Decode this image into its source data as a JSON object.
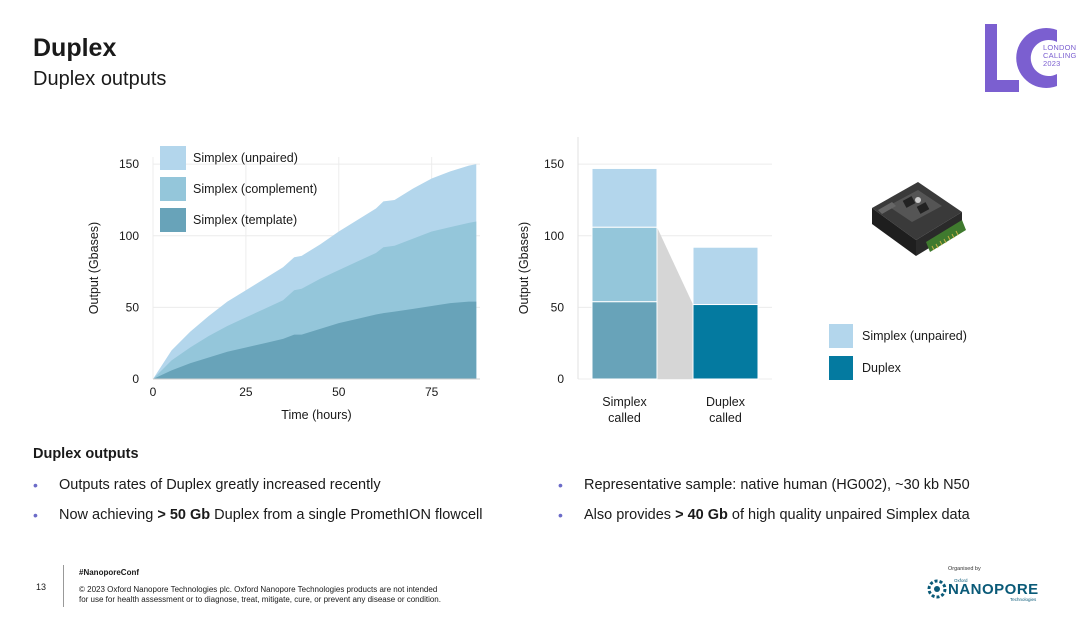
{
  "slide": {
    "title": "Duplex",
    "subtitle": "Duplex outputs",
    "page_number": "13"
  },
  "logo": {
    "letters": "LC",
    "line1": "LONDON",
    "line2": "CALLING",
    "line3": "2023",
    "color": "#7b5fd0"
  },
  "chart_data": [
    {
      "type": "area",
      "stacked": false,
      "xlabel": "Time (hours)",
      "ylabel": "Output (Gbases)",
      "xlim": [
        0,
        88
      ],
      "ylim": [
        0,
        155
      ],
      "xticks": [
        0,
        25,
        50,
        75
      ],
      "yticks": [
        0,
        50,
        100,
        150
      ],
      "grid": true,
      "legend": "top-left",
      "x": [
        0,
        5,
        10,
        15,
        20,
        25,
        30,
        35,
        38,
        40,
        45,
        50,
        55,
        60,
        62,
        65,
        70,
        75,
        80,
        85,
        87
      ],
      "series": [
        {
          "name": "Simplex (unpaired)",
          "color": "#b3d6ec",
          "values": [
            0,
            20,
            33,
            44,
            54,
            62,
            70,
            78,
            85,
            86,
            94,
            103,
            111,
            119,
            124,
            125,
            133,
            140,
            145,
            149,
            150
          ]
        },
        {
          "name": "Simplex (complement)",
          "color": "#94c6da",
          "values": [
            0,
            13,
            22,
            30,
            37,
            43,
            49,
            55,
            62,
            63,
            70,
            76,
            82,
            88,
            92,
            93,
            98,
            103,
            106,
            109,
            110
          ]
        },
        {
          "name": "Simplex (template)",
          "color": "#68a3b9",
          "values": [
            0,
            6,
            11,
            15,
            19,
            22,
            25,
            28,
            31,
            31,
            35,
            39,
            42,
            45,
            46,
            47,
            49,
            51,
            53,
            54,
            54
          ]
        }
      ]
    },
    {
      "type": "bar",
      "stacked": true,
      "ylabel": "Output (Gbases)",
      "ylim": [
        0,
        155
      ],
      "yticks": [
        0,
        50,
        100,
        150
      ],
      "grid": true,
      "legend": "right",
      "categories": [
        {
          "line1": "Simplex",
          "line2": "called"
        },
        {
          "line1": "Duplex",
          "line2": "called"
        }
      ],
      "bars": [
        {
          "segments": [
            {
              "value": 54,
              "color": "#68a3b9"
            },
            {
              "value": 52,
              "color": "#94c6da"
            },
            {
              "value": 41,
              "color": "#b3d6ec"
            }
          ]
        },
        {
          "segments": [
            {
              "value": 52,
              "color": "#047aa0"
            },
            {
              "value": 40,
              "color": "#b3d6ec"
            }
          ]
        }
      ],
      "connector_color": "#d6d6d6",
      "legend_items": [
        {
          "name": "Simplex (unpaired)",
          "color": "#b3d6ec"
        },
        {
          "name": "Duplex",
          "color": "#047aa0"
        }
      ]
    }
  ],
  "section": {
    "heading": "Duplex outputs"
  },
  "bullets_left": [
    {
      "pre": "Outputs rates of Duplex greatly increased recently",
      "bold": "",
      "post": ""
    },
    {
      "pre": "Now achieving ",
      "bold": "> 50 Gb",
      "post": " Duplex from a single PromethION flowcell"
    }
  ],
  "bullets_right": [
    {
      "pre": "Representative sample: native human (HG002), ~30 kb N50",
      "bold": "",
      "post": ""
    },
    {
      "pre": "Also provides ",
      "bold": "> 40 Gb",
      "post": " of high quality unpaired Simplex data"
    }
  ],
  "footer": {
    "hashtag": "#NanoporeConf",
    "copyright_line1": "© 2023 Oxford Nanopore Technologies plc. Oxford Nanopore Technologies products are not intended",
    "copyright_line2": "for use for health assessment or to diagnose, treat, mitigate, cure, or prevent any disease or condition.",
    "organised_by": "Organised by",
    "org_small": "Oxford",
    "org_name": "NANOPORE",
    "org_sub": "Technologies"
  }
}
